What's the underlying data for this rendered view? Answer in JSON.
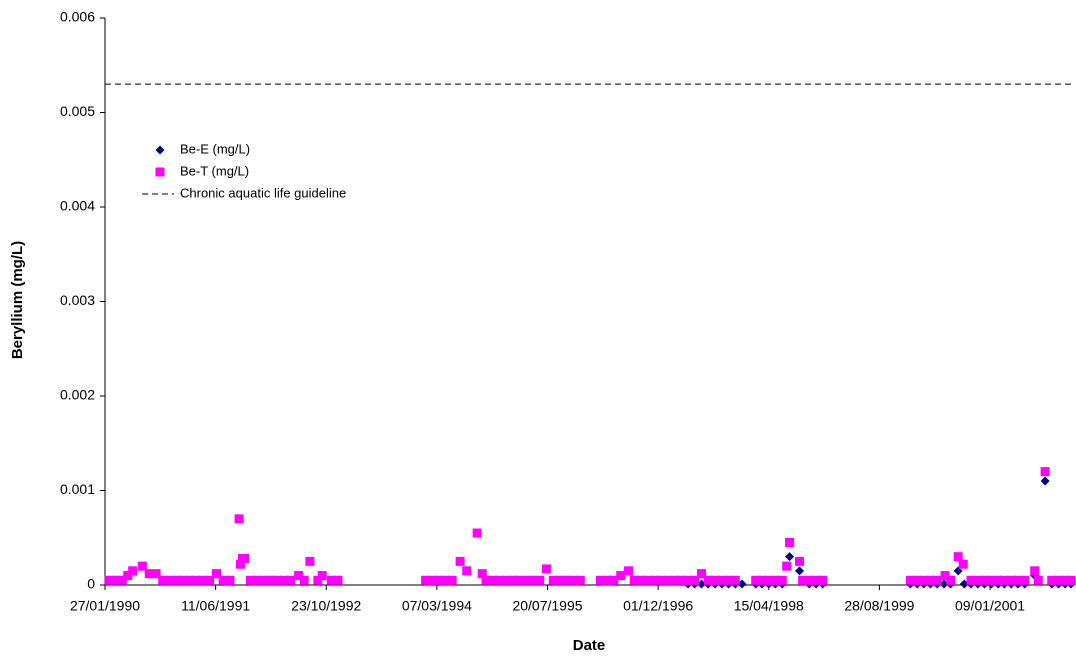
{
  "chart_data": {
    "type": "scatter",
    "x_label": "Date",
    "y_label": "Beryllium (mg/L)",
    "xlim": [
      "27/01/1990",
      "19/01/2002"
    ],
    "xticks": [
      "27/01/1990",
      "11/06/1991",
      "23/10/1992",
      "07/03/1994",
      "20/07/1995",
      "01/12/1996",
      "15/04/1998",
      "28/08/1999",
      "09/01/2001"
    ],
    "ylim": [
      0,
      0.006
    ],
    "yticks": [
      0,
      0.001,
      0.002,
      0.003,
      0.004,
      0.005,
      0.006
    ],
    "reference_line": {
      "name": "Chronic aquatic life guideline",
      "value": 0.0053,
      "color": "#000000"
    },
    "series": [
      {
        "name": "Be-E (mg/L)",
        "color": "#000080",
        "marker": "diamond",
        "x": [
          "15/04/1997",
          "15/05/1997",
          "15/06/1997",
          "15/07/1997",
          "15/08/1997",
          "15/09/1997",
          "15/10/1997",
          "15/11/1997",
          "15/12/1997",
          "15/02/1998",
          "15/03/1998",
          "15/04/1998",
          "15/05/1998",
          "15/06/1998",
          "18/07/1998",
          "01/09/1998",
          "15/10/1998",
          "15/11/1998",
          "15/12/1998",
          "15/01/2000",
          "15/02/2000",
          "15/03/2000",
          "15/04/2000",
          "15/05/2000",
          "15/06/2000",
          "15/07/2000",
          "18/08/2000",
          "15/09/2000",
          "15/10/2000",
          "15/11/2000",
          "15/12/2000",
          "15/01/2001",
          "15/02/2001",
          "15/03/2001",
          "15/04/2001",
          "15/05/2001",
          "15/06/2001",
          "30/07/2001",
          "15/09/2001",
          "15/10/2001",
          "15/11/2001",
          "15/12/2001",
          "10/01/2002"
        ],
        "values": [
          1e-05,
          1e-05,
          1e-05,
          1e-05,
          1e-05,
          1e-05,
          1e-05,
          1e-05,
          1e-05,
          1e-05,
          1e-05,
          1e-05,
          1e-05,
          1e-05,
          0.0003,
          0.00015,
          1e-05,
          1e-05,
          1e-05,
          1e-05,
          1e-05,
          1e-05,
          1e-05,
          1e-05,
          1e-05,
          1e-05,
          0.00015,
          1e-05,
          1e-05,
          1e-05,
          1e-05,
          1e-05,
          1e-05,
          1e-05,
          1e-05,
          1e-05,
          1e-05,
          0.0001,
          0.0011,
          1e-05,
          1e-05,
          1e-05,
          1e-05
        ]
      },
      {
        "name": "Be-T (mg/L)",
        "color": "#ff00ff",
        "marker": "square",
        "x": [
          "15/02/1990",
          "15/03/1990",
          "15/04/1990",
          "10/05/1990",
          "01/06/1990",
          "15/07/1990",
          "15/08/1990",
          "15/09/1990",
          "15/10/1990",
          "15/11/1990",
          "15/12/1990",
          "15/01/1991",
          "15/02/1991",
          "15/03/1991",
          "15/04/1991",
          "15/05/1991",
          "15/06/1991",
          "15/07/1991",
          "15/08/1991",
          "25/09/1991",
          "01/10/1991",
          "10/10/1991",
          "20/10/1991",
          "15/11/1991",
          "15/12/1991",
          "15/01/1992",
          "15/02/1992",
          "15/03/1992",
          "15/04/1992",
          "15/05/1992",
          "20/06/1992",
          "15/07/1992",
          "10/08/1992",
          "15/09/1992",
          "05/10/1992",
          "15/11/1992",
          "15/12/1992",
          "15/01/1994",
          "15/02/1994",
          "15/03/1994",
          "15/04/1994",
          "15/05/1994",
          "20/06/1994",
          "20/07/1994",
          "05/09/1994",
          "28/09/1994",
          "15/10/1994",
          "15/11/1994",
          "15/12/1994",
          "15/01/1995",
          "15/02/1995",
          "15/03/1995",
          "15/04/1995",
          "15/05/1995",
          "15/06/1995",
          "15/07/1995",
          "15/08/1995",
          "15/09/1995",
          "15/10/1995",
          "15/11/1995",
          "15/12/1995",
          "15/03/1996",
          "15/04/1996",
          "15/05/1996",
          "15/06/1996",
          "20/07/1996",
          "15/08/1996",
          "15/09/1996",
          "15/10/1996",
          "15/11/1996",
          "15/12/1996",
          "15/01/1997",
          "15/02/1997",
          "15/03/1997",
          "15/04/1997",
          "15/05/1997",
          "15/06/1997",
          "15/07/1997",
          "15/08/1997",
          "15/09/1997",
          "15/10/1997",
          "15/11/1997",
          "15/02/1998",
          "15/03/1998",
          "15/04/1998",
          "15/05/1998",
          "15/06/1998",
          "05/07/1998",
          "18/07/1998",
          "01/09/1998",
          "15/09/1998",
          "15/10/1998",
          "15/11/1998",
          "15/12/1998",
          "15/01/2000",
          "15/02/2000",
          "15/03/2000",
          "15/04/2000",
          "15/05/2000",
          "20/06/2000",
          "15/07/2000",
          "18/08/2000",
          "10/09/2000",
          "15/10/2000",
          "15/11/2000",
          "15/12/2000",
          "15/01/2001",
          "15/02/2001",
          "15/03/2001",
          "15/04/2001",
          "15/05/2001",
          "15/06/2001",
          "30/07/2001",
          "15/08/2001",
          "15/09/2001",
          "15/10/2001",
          "15/11/2001",
          "15/12/2001",
          "10/01/2002"
        ],
        "values": [
          5e-05,
          5e-05,
          5e-05,
          0.0001,
          0.00015,
          0.0002,
          0.00012,
          0.00012,
          5e-05,
          5e-05,
          5e-05,
          5e-05,
          5e-05,
          5e-05,
          5e-05,
          5e-05,
          0.00012,
          5e-05,
          5e-05,
          0.0007,
          0.00022,
          0.00028,
          0.00028,
          5e-05,
          5e-05,
          5e-05,
          5e-05,
          5e-05,
          5e-05,
          5e-05,
          0.0001,
          5e-05,
          0.00025,
          5e-05,
          0.0001,
          5e-05,
          5e-05,
          5e-05,
          5e-05,
          5e-05,
          5e-05,
          5e-05,
          0.00025,
          0.00015,
          0.00055,
          0.00012,
          5e-05,
          5e-05,
          5e-05,
          5e-05,
          5e-05,
          5e-05,
          5e-05,
          5e-05,
          5e-05,
          0.00017,
          5e-05,
          5e-05,
          5e-05,
          5e-05,
          5e-05,
          5e-05,
          5e-05,
          5e-05,
          0.0001,
          0.00015,
          5e-05,
          5e-05,
          5e-05,
          5e-05,
          5e-05,
          5e-05,
          5e-05,
          5e-05,
          5e-05,
          5e-05,
          0.00012,
          5e-05,
          5e-05,
          5e-05,
          5e-05,
          5e-05,
          5e-05,
          5e-05,
          5e-05,
          5e-05,
          5e-05,
          0.0002,
          0.00045,
          0.00025,
          5e-05,
          5e-05,
          5e-05,
          5e-05,
          5e-05,
          5e-05,
          5e-05,
          5e-05,
          5e-05,
          0.0001,
          5e-05,
          0.0003,
          0.00022,
          5e-05,
          5e-05,
          5e-05,
          5e-05,
          5e-05,
          5e-05,
          5e-05,
          5e-05,
          5e-05,
          0.00015,
          5e-05,
          0.0012,
          5e-05,
          5e-05,
          5e-05,
          5e-05
        ]
      }
    ]
  }
}
